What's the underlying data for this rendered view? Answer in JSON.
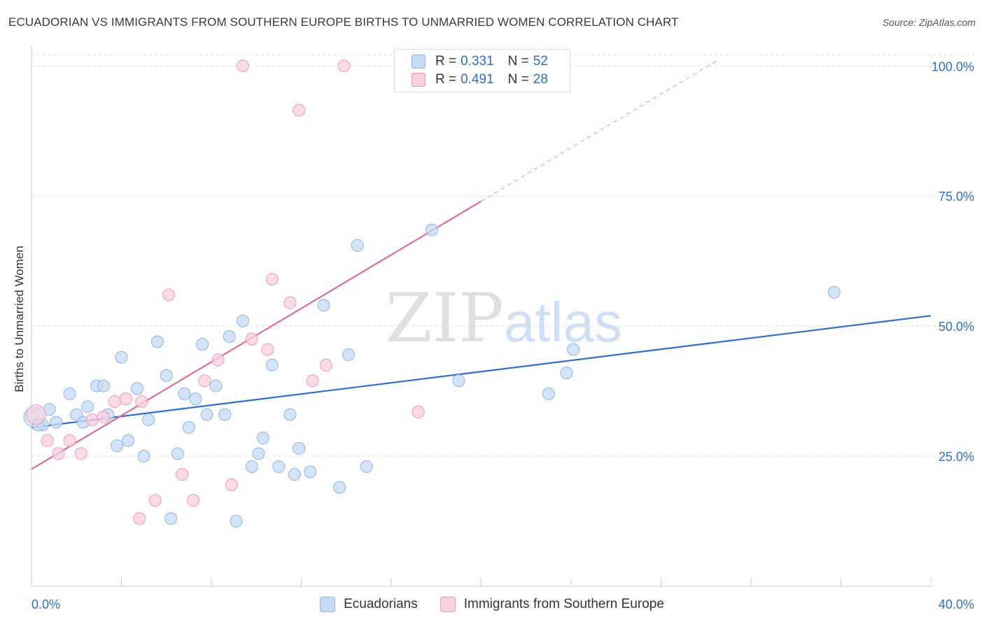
{
  "header": {
    "title": "ECUADORIAN VS IMMIGRANTS FROM SOUTHERN EUROPE BIRTHS TO UNMARRIED WOMEN CORRELATION CHART",
    "source": "Source: ZipAtlas.com"
  },
  "watermark": {
    "zip": "ZIP",
    "atlas": "atlas"
  },
  "stats_legend": [
    {
      "r_label": "R = ",
      "r_value": "0.331",
      "n_label": "N = ",
      "n_value": "52"
    },
    {
      "r_label": "R = ",
      "r_value": "0.491",
      "n_label": "N = ",
      "n_value": "28"
    }
  ],
  "bottom_legend": [
    "Ecuadorians",
    "Immigrants from Southern Europe"
  ],
  "colors": {
    "blue_fill": "#c5dbf5",
    "blue_stroke": "#8fb4e6",
    "blue_line": "#2f6fd0",
    "pink_fill": "#f9d0dd",
    "pink_stroke": "#ef9ab5",
    "pink_line": "#e36b93",
    "axis_text": "#2f6fd0",
    "grid": "#dddddd"
  },
  "chart_data": {
    "type": "scatter",
    "title": "ECUADORIAN VS IMMIGRANTS FROM SOUTHERN EUROPE BIRTHS TO UNMARRIED WOMEN CORRELATION CHART",
    "xlabel": "",
    "ylabel": "Births to Unmarried Women",
    "xlim": [
      0,
      40
    ],
    "ylim": [
      0,
      103
    ],
    "x_tick_labels": [
      "0.0%",
      "40.0%"
    ],
    "y_ticks": [
      {
        "value": 25,
        "label": "25.0%"
      },
      {
        "value": 50,
        "label": "50.0%"
      },
      {
        "value": 75,
        "label": "75.0%"
      },
      {
        "value": 100,
        "label": "100.0%"
      }
    ],
    "grid": true,
    "series": [
      {
        "name": "Ecuadorians",
        "color": "blue",
        "r": 0.331,
        "n": 52,
        "trend": {
          "x0": 0,
          "y0": 30.5,
          "x1": 40,
          "y1": 52.0,
          "dashed_until": 40
        },
        "points": [
          [
            0.1,
            32.5
          ],
          [
            0.5,
            31.0
          ],
          [
            0.8,
            34.0
          ],
          [
            1.1,
            31.5
          ],
          [
            1.7,
            37.0
          ],
          [
            2.0,
            33.0
          ],
          [
            2.3,
            31.5
          ],
          [
            2.5,
            34.5
          ],
          [
            2.9,
            38.5
          ],
          [
            3.2,
            38.5
          ],
          [
            3.4,
            33.0
          ],
          [
            3.8,
            27.0
          ],
          [
            4.0,
            44.0
          ],
          [
            4.3,
            28.0
          ],
          [
            4.7,
            38.0
          ],
          [
            5.0,
            25.0
          ],
          [
            5.2,
            32.0
          ],
          [
            5.6,
            47.0
          ],
          [
            6.0,
            40.5
          ],
          [
            6.2,
            13.0
          ],
          [
            6.5,
            25.5
          ],
          [
            6.8,
            37.0
          ],
          [
            7.0,
            30.5
          ],
          [
            7.3,
            36.0
          ],
          [
            7.6,
            46.5
          ],
          [
            7.8,
            33.0
          ],
          [
            8.2,
            38.5
          ],
          [
            8.6,
            33.0
          ],
          [
            8.8,
            48.0
          ],
          [
            9.1,
            12.5
          ],
          [
            9.4,
            51.0
          ],
          [
            9.8,
            23.0
          ],
          [
            10.1,
            25.5
          ],
          [
            10.3,
            28.5
          ],
          [
            10.7,
            42.5
          ],
          [
            11.0,
            23.0
          ],
          [
            11.5,
            33.0
          ],
          [
            11.7,
            21.5
          ],
          [
            11.9,
            26.5
          ],
          [
            12.4,
            22.0
          ],
          [
            13.0,
            54.0
          ],
          [
            13.7,
            19.0
          ],
          [
            14.1,
            44.5
          ],
          [
            14.5,
            65.5
          ],
          [
            14.9,
            23.0
          ],
          [
            17.8,
            68.5
          ],
          [
            19.0,
            39.5
          ],
          [
            23.0,
            37.0
          ],
          [
            23.8,
            41.0
          ],
          [
            24.1,
            45.5
          ],
          [
            35.7,
            56.5
          ],
          [
            0.3,
            31.0
          ]
        ]
      },
      {
        "name": "Immigrants from Southern Europe",
        "color": "pink",
        "r": 0.491,
        "n": 28,
        "trend": {
          "x0": 0,
          "y0": 22.5,
          "x1": 20,
          "y1": 74.0,
          "dashed_until": 30.5
        },
        "points": [
          [
            0.2,
            33.0
          ],
          [
            0.7,
            28.0
          ],
          [
            1.2,
            25.5
          ],
          [
            1.7,
            28.0
          ],
          [
            2.2,
            25.5
          ],
          [
            2.7,
            32.0
          ],
          [
            3.2,
            32.5
          ],
          [
            3.7,
            35.5
          ],
          [
            4.2,
            36.0
          ],
          [
            4.8,
            13.0
          ],
          [
            4.9,
            35.5
          ],
          [
            5.5,
            16.5
          ],
          [
            6.1,
            56.0
          ],
          [
            6.7,
            21.5
          ],
          [
            7.2,
            16.5
          ],
          [
            7.7,
            39.5
          ],
          [
            8.3,
            43.5
          ],
          [
            8.9,
            19.5
          ],
          [
            9.4,
            100.0
          ],
          [
            9.8,
            47.5
          ],
          [
            10.5,
            45.5
          ],
          [
            10.7,
            59.0
          ],
          [
            11.5,
            54.5
          ],
          [
            11.9,
            91.5
          ],
          [
            12.5,
            39.5
          ],
          [
            13.1,
            42.5
          ],
          [
            13.9,
            100.0
          ],
          [
            17.2,
            33.5
          ]
        ]
      }
    ]
  }
}
